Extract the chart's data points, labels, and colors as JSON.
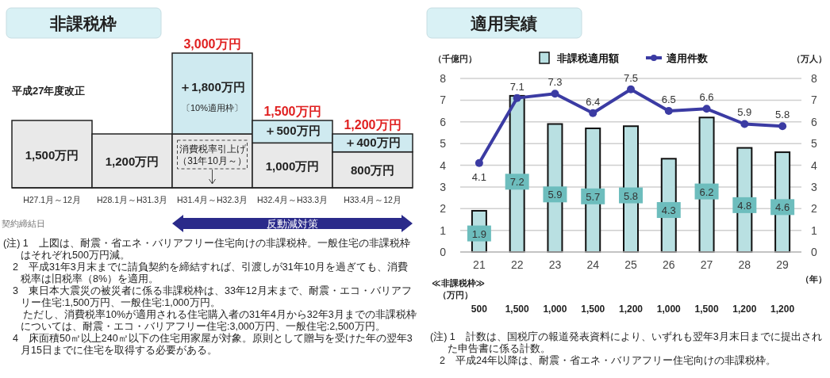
{
  "chart_data": [
    {
      "type": "bar",
      "stacked": true,
      "title": "非課税枠",
      "categories": [
        "H27.1月～12月",
        "H28.1月～H31.3月",
        "H31.4月～H32.3月",
        "H32.4月～H33.3月",
        "H33.4月～12月"
      ],
      "series": [
        {
          "color": "#e9e9e9",
          "values": [
            1500,
            1200,
            1200,
            1000,
            800
          ],
          "value_labels": [
            "1,500万円",
            "1,200万円",
            null,
            "1,000万円",
            "800万円"
          ]
        },
        {
          "color": "#cfeaf0",
          "values": [
            null,
            null,
            1800,
            500,
            400
          ],
          "value_labels": [
            null,
            null,
            "＋1,800万円",
            "＋500万円",
            "＋400万円"
          ]
        }
      ],
      "totals": [
        null,
        null,
        "3,000万円",
        "1,500万円",
        "1,200万円"
      ],
      "annotations": [
        "平成27年度改正",
        "〔10%適用枠〕",
        "消費税率引上げ",
        "（31年10月～）",
        "契約締結日",
        "反動減対策",
        "(注) 1　上図は、耐震・省エネ・バリアフリー住宅向けの非課税枠。一般住宅の非課税枠はそれぞれ500万円減。",
        "2　平成31年3月末までに請負契約を締結すれば、引渡しが31年10月を過ぎても、消費税率は旧税率（8%）を適用。",
        "3　東日本大震災の被災者に係る非課税枠は、33年12月末まで、耐震・エコ・バリアフリー住宅:1,500万円、一般住宅:1,000万円。",
        "　ただし、消費税率10%が適用される住宅購入者の31年4月から32年3月までの非課税枠については、耐震・エコ・バリアフリー住宅:3,000万円、一般住宅:2,500万円。",
        "4　床面積50㎡以上240㎡以下の住宅用家屋が対象。原則として贈与を受けた年の翌年3月15日までに住宅を取得する必要がある。"
      ]
    },
    {
      "type": "bar",
      "title": "適用実績",
      "ylabel": "（千億円）",
      "y2label": "（万人）",
      "xlabel": "（年）",
      "categories": [
        "21",
        "22",
        "23",
        "24",
        "25",
        "26",
        "27",
        "28",
        "29"
      ],
      "series": [
        {
          "name": "非課税適用額",
          "type": "bar",
          "color": "#b9e0e2",
          "values": [
            1.9,
            7.2,
            5.9,
            5.7,
            5.8,
            4.3,
            6.2,
            4.8,
            4.6
          ]
        },
        {
          "name": "適用件数",
          "type": "line",
          "axis": "y2",
          "color": "#3b3ba3",
          "values": [
            4.1,
            7.1,
            7.3,
            6.4,
            7.5,
            6.5,
            6.6,
            5.9,
            5.8
          ]
        }
      ],
      "ylim": [
        0,
        8
      ],
      "yticks": [
        0,
        1,
        2,
        3,
        4,
        5,
        6,
        7,
        8
      ],
      "y2lim": [
        0,
        8
      ],
      "y2ticks": [
        0,
        1,
        2,
        3,
        4,
        5,
        6,
        7,
        8
      ],
      "grid": "y",
      "data_labels": true,
      "legend": "top",
      "marker": "circle",
      "annotations": [
        "≪非課税枠≫",
        "（万円）",
        "500",
        "1,500",
        "1,000",
        "1,500",
        "1,200",
        "1,000",
        "1,500",
        "1,200",
        "1,200",
        "(注) 1　計数は、国税庁の報道発表資料により、いずれも翌年3月末日までに提出された申告書に係る計数。",
        "2　平成24年以降は、耐震・省エネ・バリアフリー住宅向けの非課税枠。"
      ]
    }
  ]
}
